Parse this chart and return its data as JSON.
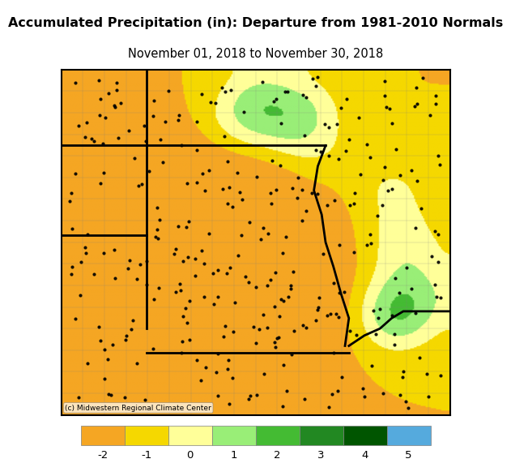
{
  "title_bold": "Accumulated Precipitation (in): Departure from 1981-2010 Normals",
  "title_sub": "November 01, 2018 to November 30, 2018",
  "colorbar_values": [
    -2,
    -1,
    0,
    1,
    2,
    3,
    4,
    5
  ],
  "colorbar_colors": [
    "#F5A623",
    "#F5D800",
    "#FFFFB3",
    "#7FD47F",
    "#3CBF3C",
    "#1E8C1E",
    "#4CA3DD",
    "#4CA3DD"
  ],
  "colorbar_label_values": [
    -2,
    -1,
    0,
    1,
    2,
    3,
    4,
    5
  ],
  "watermark": "(c) Midwestern Regional Climate Center",
  "fig_width": 5.0,
  "fig_height": 6.04,
  "map_bg": "#F0F0A0",
  "title_fontsize": 11.5,
  "sub_fontsize": 10.5,
  "colorbar_colors_detailed": [
    "#F5A623",
    "#F5D800",
    "#FFFF99",
    "#B8FF99",
    "#66CC44",
    "#339933",
    "#006600",
    "#4CA3DD"
  ]
}
